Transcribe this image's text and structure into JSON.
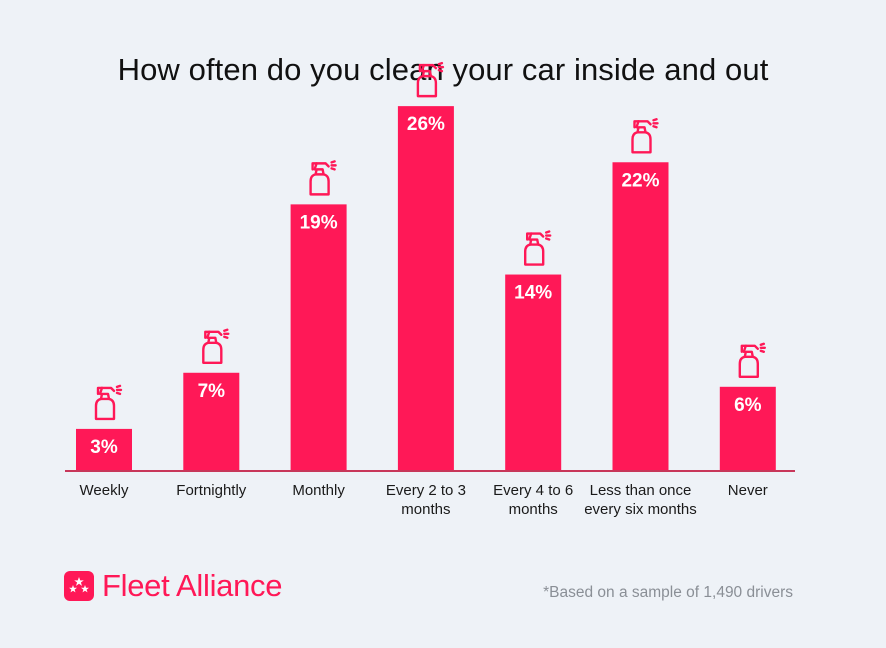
{
  "colors": {
    "accent": "#ff1857",
    "axis": "#c8375a",
    "icon": "#ff1857"
  },
  "logo": {
    "name": "Fleet Alliance",
    "icon": "star-badge-icon"
  },
  "footnote": "*Based on a sample of 1,490 drivers",
  "chart_data": {
    "type": "bar",
    "title": "How often do you clean your car inside and out",
    "xlabel": "",
    "ylabel": "",
    "ylim": [
      0,
      30
    ],
    "grid": false,
    "legend": "none",
    "value_suffix": "%",
    "icon": "spray-bottle-icon",
    "categories": [
      [
        "Weekly"
      ],
      [
        "Fortnightly"
      ],
      [
        "Monthly"
      ],
      [
        "Every 2 to 3",
        "months"
      ],
      [
        "Every 4 to 6",
        "months"
      ],
      [
        "Less than once",
        "every six months"
      ],
      [
        "Never"
      ]
    ],
    "values": [
      3,
      7,
      19,
      26,
      14,
      22,
      6
    ],
    "data_labels": [
      "3%",
      "7%",
      "19%",
      "26%",
      "14%",
      "22%",
      "6%"
    ]
  }
}
